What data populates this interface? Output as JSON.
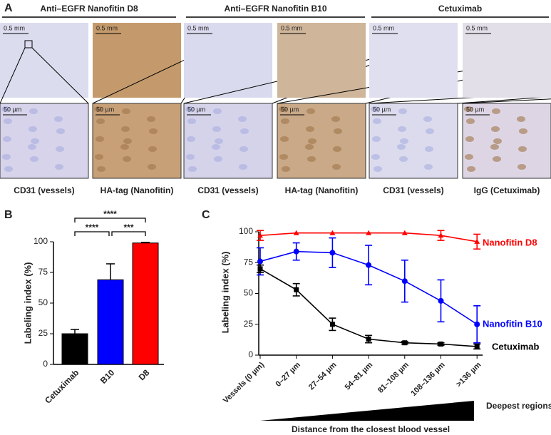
{
  "panel_a": {
    "label": "A",
    "groups": [
      {
        "title": "Anti–EGFR Nanofitin D8",
        "images": [
          {
            "scale_top": "0.5 mm",
            "scale_bottom": "50 µm",
            "caption": "CD31 (vessels)"
          },
          {
            "scale_top": "0.5 mm",
            "scale_bottom": "50 µm",
            "caption": "HA-tag (Nanofitin)"
          }
        ]
      },
      {
        "title": "Anti–EGFR Nanofitin B10",
        "images": [
          {
            "scale_top": "0.5 mm",
            "scale_bottom": "50 µm",
            "caption": "CD31 (vessels)"
          },
          {
            "scale_top": "0.5 mm",
            "scale_bottom": "50 µm",
            "caption": "HA-tag (Nanofitin)"
          }
        ]
      },
      {
        "title": "Cetuximab",
        "images": [
          {
            "scale_top": "0.5 mm",
            "scale_bottom": "50 µm",
            "caption": "CD31 (vessels)"
          },
          {
            "scale_top": "0.5 mm",
            "scale_bottom": "50 µm",
            "caption": "IgG (Cetuximab)"
          }
        ]
      }
    ]
  },
  "chart_data": [
    {
      "type": "bar",
      "label": "B",
      "y_label": "Labeling index (%)",
      "categories": [
        "Cetuximab",
        "B10",
        "D8"
      ],
      "values": [
        25,
        69,
        99
      ],
      "errors": [
        3.5,
        13,
        0.5
      ],
      "colors": [
        "#000000",
        "#0000ff",
        "#ff0000"
      ],
      "ylim": [
        0,
        100
      ],
      "yticks": [
        0,
        25,
        50,
        75,
        100
      ],
      "annotations": [
        "****",
        "****",
        "***"
      ]
    },
    {
      "type": "line",
      "label": "C",
      "y_label": "Labeling index (%)",
      "x_label": "Distance from the closest blood vessel",
      "annotation": "Deepest regions",
      "categories": [
        "Vessels (0 µm)",
        "0–27 µm",
        "27–54 µm",
        "54–81 µm",
        "81–108 µm",
        "108–136 µm",
        ">136 µm"
      ],
      "ylim": [
        0,
        100
      ],
      "yticks": [
        0,
        25,
        50,
        75,
        100
      ],
      "series": [
        {
          "name": "Nanofitin D8",
          "color": "#ff0000",
          "marker": "triangle",
          "values": [
            97,
            99,
            99,
            99,
            99,
            97,
            92
          ],
          "errors": [
            4,
            0,
            0,
            0,
            0,
            4,
            6
          ]
        },
        {
          "name": "Nanofitin B10",
          "color": "#0000ff",
          "marker": "circle",
          "values": [
            76,
            84,
            83,
            73,
            60,
            44,
            25
          ],
          "errors": [
            11,
            7,
            12,
            16,
            17,
            17,
            15
          ]
        },
        {
          "name": "Cetuximab",
          "color": "#000000",
          "marker": "square",
          "values": [
            70,
            53,
            25,
            13,
            10,
            9,
            7
          ],
          "errors": [
            3,
            5,
            5,
            3,
            1,
            1,
            2
          ]
        }
      ]
    }
  ]
}
